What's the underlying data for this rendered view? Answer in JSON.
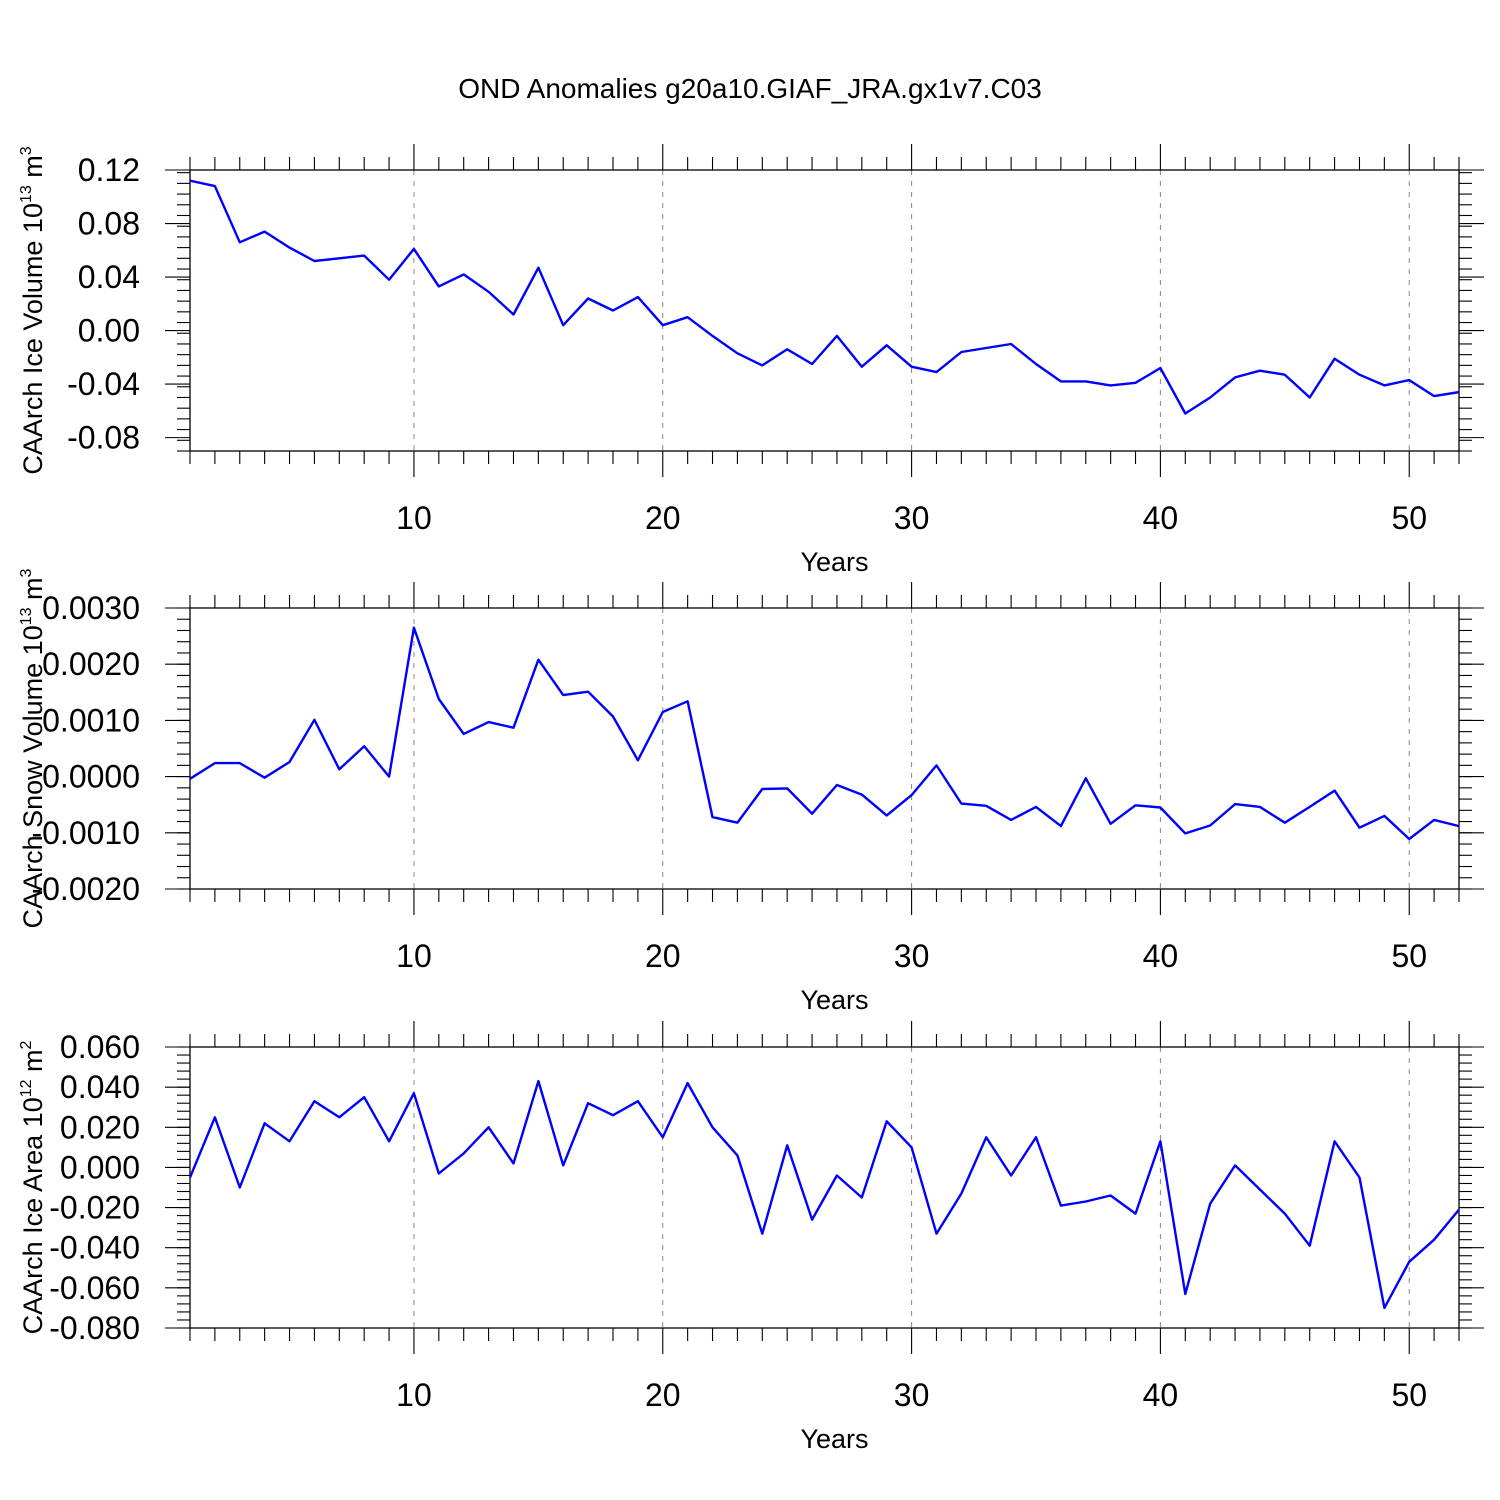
{
  "title": "OND Anomalies g20a10.GIAF_JRA.gx1v7.C03",
  "colors": {
    "line": "#0000ff",
    "frame": "#000000",
    "grid": "#888888"
  },
  "chart_data": [
    {
      "type": "line",
      "ylabel": "CAArch Ice Volume 10",
      "ylabel_exp": "13",
      "ylabel_unit": " m",
      "ylabel_unit_exp": "3",
      "xlabel": "Years",
      "xlim": [
        1,
        52
      ],
      "ylim": [
        -0.09,
        0.12
      ],
      "x_ticks": [
        10,
        20,
        30,
        40,
        50
      ],
      "x_tick_labels": [
        "10",
        "20",
        "30",
        "40",
        "50"
      ],
      "y_ticks": [
        0.12,
        0.08,
        0.04,
        0.0,
        -0.04,
        -0.08
      ],
      "y_tick_labels": [
        "0.12",
        "0.08",
        "0.04",
        "0.00",
        "-0.04",
        "-0.08"
      ],
      "y_minor_step": 0.008,
      "grid": "vertical dashed at major x ticks",
      "series": [
        {
          "values": [
            0.112,
            0.108,
            0.066,
            0.074,
            0.062,
            0.052,
            0.054,
            0.056,
            0.038,
            0.061,
            0.033,
            0.042,
            0.029,
            0.012,
            0.047,
            0.004,
            0.024,
            0.015,
            0.025,
            0.004,
            0.01,
            -0.004,
            -0.017,
            -0.026,
            -0.014,
            -0.025,
            -0.004,
            -0.027,
            -0.011,
            -0.027,
            -0.031,
            -0.016,
            -0.013,
            -0.01,
            -0.025,
            -0.038,
            -0.038,
            -0.041,
            -0.039,
            -0.028,
            -0.062,
            -0.05,
            -0.035,
            -0.03,
            -0.033,
            -0.05,
            -0.021,
            -0.033,
            -0.041,
            -0.037,
            -0.049,
            -0.046
          ]
        }
      ]
    },
    {
      "type": "line",
      "ylabel": "CAArch Snow Volume 10",
      "ylabel_exp": "13",
      "ylabel_unit": " m",
      "ylabel_unit_exp": "3",
      "xlabel": "Years",
      "xlim": [
        1,
        52
      ],
      "ylim": [
        -0.002,
        0.003
      ],
      "x_ticks": [
        10,
        20,
        30,
        40,
        50
      ],
      "x_tick_labels": [
        "10",
        "20",
        "30",
        "40",
        "50"
      ],
      "y_ticks": [
        0.003,
        0.002,
        0.001,
        0.0,
        -0.001,
        -0.002
      ],
      "y_tick_labels": [
        "0.0030",
        "0.0020",
        "0.0010",
        "0.0000",
        "-0.0010",
        "-0.0020"
      ],
      "y_minor_step": 0.0002,
      "grid": "vertical dashed at major x ticks",
      "series": [
        {
          "values": [
            -4e-05,
            0.00024,
            0.00024,
            -2e-05,
            0.00026,
            0.00101,
            0.00013,
            0.00054,
            0.0,
            0.00265,
            0.00138,
            0.00076,
            0.00097,
            0.00087,
            0.00208,
            0.00145,
            0.00151,
            0.00107,
            0.00029,
            0.00115,
            0.00134,
            -0.00072,
            -0.00082,
            -0.00022,
            -0.00021,
            -0.00066,
            -0.00015,
            -0.00032,
            -0.00069,
            -0.00033,
            0.0002,
            -0.00048,
            -0.00052,
            -0.00077,
            -0.00054,
            -0.00088,
            -3e-05,
            -0.00084,
            -0.00051,
            -0.00055,
            -0.00101,
            -0.00087,
            -0.00049,
            -0.00054,
            -0.00082,
            -0.00054,
            -0.00025,
            -0.00091,
            -0.0007,
            -0.00111,
            -0.00077,
            -0.00088
          ]
        }
      ]
    },
    {
      "type": "line",
      "ylabel": "CAArch Ice Area 10",
      "ylabel_exp": "12",
      "ylabel_unit": " m",
      "ylabel_unit_exp": "2",
      "xlabel": "Years",
      "xlim": [
        1,
        52
      ],
      "ylim": [
        -0.08,
        0.06
      ],
      "x_ticks": [
        10,
        20,
        30,
        40,
        50
      ],
      "x_tick_labels": [
        "10",
        "20",
        "30",
        "40",
        "50"
      ],
      "y_ticks": [
        0.06,
        0.04,
        0.02,
        0.0,
        -0.02,
        -0.04,
        -0.06,
        -0.08
      ],
      "y_tick_labels": [
        "0.060",
        "0.040",
        "0.020",
        "0.000",
        "-0.020",
        "-0.040",
        "-0.060",
        "-0.080"
      ],
      "y_minor_step": 0.004,
      "grid": "vertical dashed at major x ticks",
      "series": [
        {
          "values": [
            -0.005,
            0.025,
            -0.01,
            0.022,
            0.013,
            0.033,
            0.025,
            0.035,
            0.013,
            0.037,
            -0.003,
            0.007,
            0.02,
            0.002,
            0.043,
            0.001,
            0.032,
            0.026,
            0.033,
            0.015,
            0.042,
            0.02,
            0.006,
            -0.033,
            0.011,
            -0.026,
            -0.004,
            -0.015,
            0.023,
            0.01,
            -0.033,
            -0.013,
            0.015,
            -0.004,
            0.015,
            -0.019,
            -0.017,
            -0.014,
            -0.023,
            0.013,
            -0.063,
            -0.018,
            0.001,
            -0.011,
            -0.023,
            -0.039,
            0.013,
            -0.005,
            -0.07,
            -0.047,
            -0.036,
            -0.021
          ]
        }
      ]
    }
  ]
}
